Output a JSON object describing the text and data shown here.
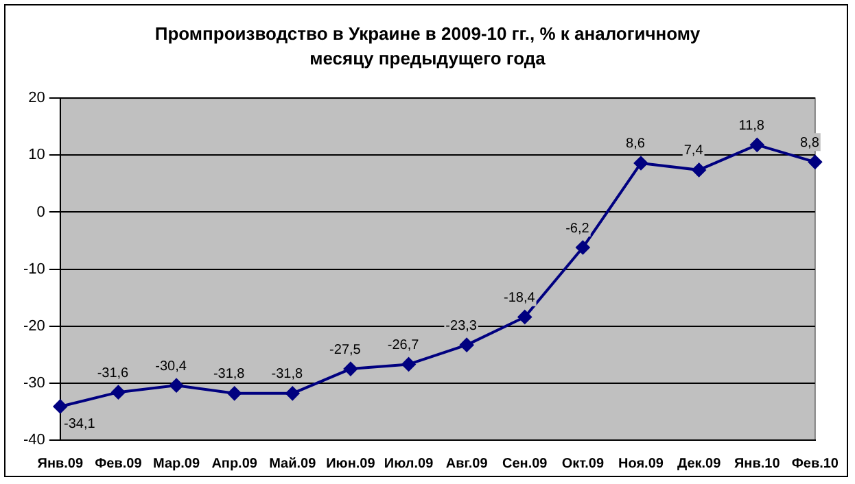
{
  "chart_data": {
    "type": "line",
    "title": "Промпроизводство в Украине в 2009-10 гг., % к аналогичному месяцу предыдущего года",
    "categories": [
      "Янв.09",
      "Фев.09",
      "Мар.09",
      "Апр.09",
      "Май.09",
      "Июн.09",
      "Июл.09",
      "Авг.09",
      "Сен.09",
      "Окт.09",
      "Ноя.09",
      "Дек.09",
      "Янв.10",
      "Фев.10"
    ],
    "values": [
      -34.1,
      -31.6,
      -30.4,
      -31.8,
      -31.8,
      -27.5,
      -26.7,
      -23.3,
      -18.4,
      -6.2,
      8.6,
      7.4,
      11.8,
      8.8
    ],
    "value_labels": [
      "-34,1",
      "-31,6",
      "-30,4",
      "-31,8",
      "-31,8",
      "-27,5",
      "-26,7",
      "-23,3",
      "-18,4",
      "-6,2",
      "8,6",
      "7,4",
      "11,8",
      "8,8"
    ],
    "color": "#000080",
    "marker": "diamond",
    "line_style": "solid",
    "ylim": [
      -40,
      20
    ],
    "yticks": [
      -40,
      -30,
      -20,
      -10,
      0,
      10,
      20
    ],
    "grid": "y",
    "legend": false
  }
}
